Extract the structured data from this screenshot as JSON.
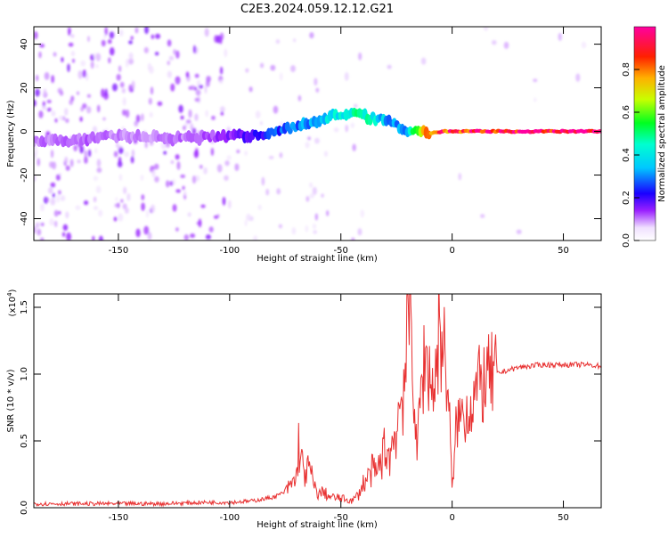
{
  "title": "C2E3.2024.059.12.12.G21",
  "chart_data": [
    {
      "type": "heatmap",
      "title": "C2E3.2024.059.12.12.G21",
      "xlabel": "Height of straight line (km)",
      "ylabel": "Frequency (Hz)",
      "xlim": [
        -188,
        67
      ],
      "ylim": [
        -50,
        48
      ],
      "x_ticks": [
        -150,
        -100,
        -50,
        0,
        50
      ],
      "y_ticks": [
        -40,
        -20,
        0,
        20,
        40
      ],
      "colorbar": {
        "label": "Normalized spectral amplitude",
        "range": [
          0,
          1
        ],
        "ticks": [
          0.0,
          0.2,
          0.4,
          0.6,
          0.8
        ],
        "colormap": [
          "#ffffff",
          "#f3e6ff",
          "#8a00ff",
          "#0000ff",
          "#00e5ff",
          "#00ff00",
          "#ffff00",
          "#ff8000",
          "#ff0000",
          "#ff00a0"
        ]
      },
      "ridge": {
        "x": [
          -188,
          -170,
          -150,
          -130,
          -110,
          -100,
          -90,
          -80,
          -70,
          -60,
          -55,
          -50,
          -45,
          -40,
          -35,
          -30,
          -25,
          -20,
          -15,
          -10,
          -5,
          0,
          10,
          30,
          50,
          67
        ],
        "frequency": [
          -5,
          -4,
          -2,
          -3,
          -3,
          -2,
          -2,
          0,
          2,
          5,
          7,
          8,
          8,
          7,
          6,
          6,
          3,
          -1,
          1,
          -1,
          0,
          0,
          0,
          0,
          0,
          0
        ],
        "amplitude": [
          0.1,
          0.12,
          0.1,
          0.1,
          0.12,
          0.15,
          0.2,
          0.25,
          0.3,
          0.35,
          0.4,
          0.42,
          0.45,
          0.45,
          0.4,
          0.35,
          0.3,
          0.35,
          0.7,
          0.8,
          0.85,
          0.9,
          0.95,
          1.0,
          1.0,
          1.0
        ]
      }
    },
    {
      "type": "line",
      "xlabel": "Height of straight line (km)",
      "ylabel": "SNR (10 * v/v)",
      "y_multiplier": "(x10",
      "y_multiplier_exp": "4",
      "xlim": [
        -188,
        67
      ],
      "ylim": [
        0,
        1.6
      ],
      "x_ticks": [
        -150,
        -100,
        -50,
        0,
        50
      ],
      "y_ticks": [
        0.0,
        0.5,
        1.0,
        1.5
      ],
      "color": "#e83030",
      "series": [
        {
          "x": [
            -188,
            -170,
            -150,
            -130,
            -110,
            -100,
            -90,
            -80,
            -75,
            -72,
            -70,
            -69,
            -68,
            -66,
            -64,
            -62,
            -60,
            -58,
            -55,
            -50,
            -47,
            -45,
            -42,
            -40,
            -38,
            -36,
            -34,
            -32,
            -30,
            -28,
            -26,
            -24,
            -22,
            -20,
            -19,
            -18,
            -17,
            -16,
            -15,
            -14,
            -12,
            -10,
            -8,
            -6,
            -4,
            -2,
            -1,
            0,
            2,
            5,
            8,
            10,
            12,
            15,
            18,
            20,
            25,
            30,
            35,
            40,
            45,
            50,
            55,
            60,
            67
          ],
          "values": [
            0.03,
            0.03,
            0.03,
            0.03,
            0.04,
            0.04,
            0.05,
            0.08,
            0.12,
            0.18,
            0.22,
            0.48,
            0.35,
            0.25,
            0.3,
            0.15,
            0.1,
            0.12,
            0.08,
            0.07,
            0.06,
            0.05,
            0.1,
            0.18,
            0.22,
            0.28,
            0.25,
            0.35,
            0.45,
            0.38,
            0.55,
            0.7,
            0.95,
            1.15,
            1.58,
            1.2,
            0.85,
            0.4,
            0.6,
            0.9,
            1.15,
            1.0,
            0.85,
            1.35,
            1.2,
            0.95,
            0.6,
            0.1,
            0.65,
            0.7,
            0.75,
            0.85,
            0.9,
            0.95,
            0.98,
            1.0,
            1.03,
            1.05,
            1.06,
            1.07,
            1.07,
            1.07,
            1.07,
            1.07,
            1.06
          ]
        }
      ]
    }
  ]
}
